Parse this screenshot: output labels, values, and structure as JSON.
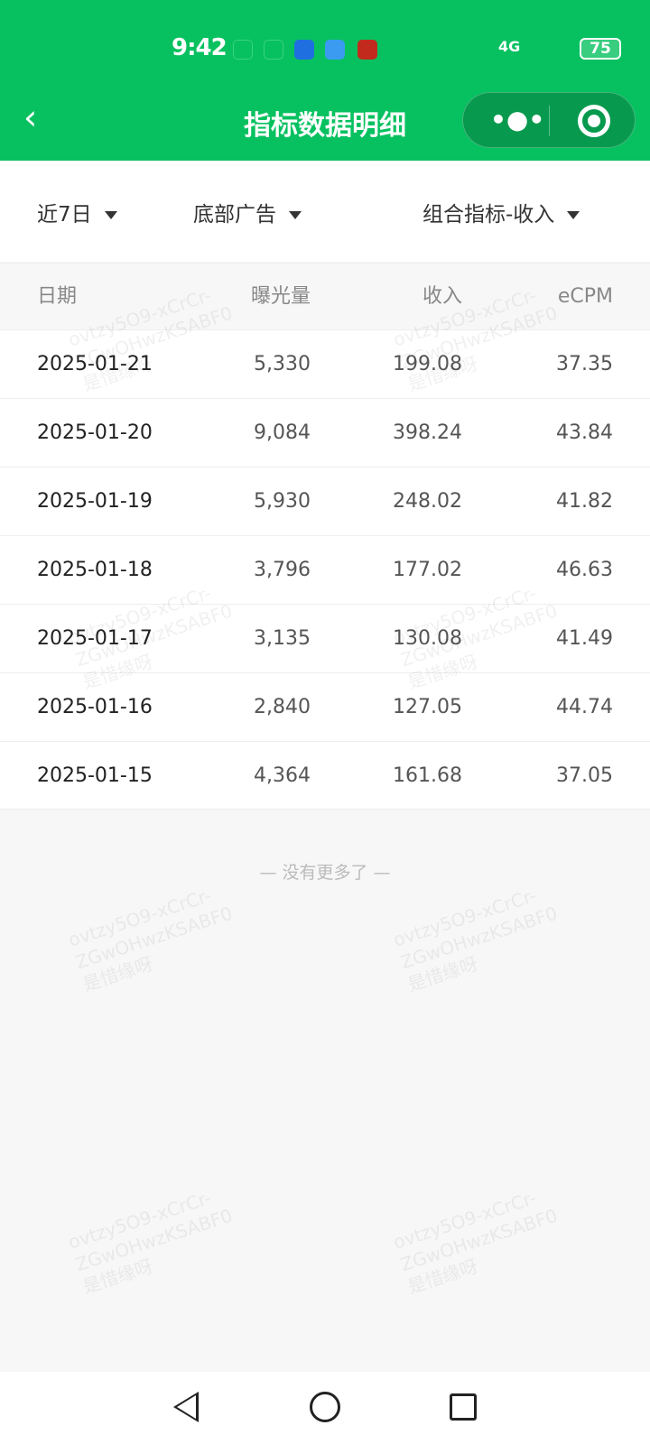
{
  "status_bar": {
    "time": "9:42",
    "network": "4G",
    "battery": "75"
  },
  "header": {
    "title": "指标数据明细",
    "back_icon": "chevron-left-icon",
    "more_icon": "more-dots-icon",
    "close_icon": "target-circle-icon",
    "color": "#07c160"
  },
  "filters": [
    {
      "label": "近7日"
    },
    {
      "label": "底部广告"
    },
    {
      "label": "组合指标-收入"
    }
  ],
  "table": {
    "headers": [
      "日期",
      "曝光量",
      "收入",
      "eCPM"
    ],
    "rows": [
      [
        "2025-01-21",
        "5,330",
        "199.08",
        "37.35"
      ],
      [
        "2025-01-20",
        "9,084",
        "398.24",
        "43.84"
      ],
      [
        "2025-01-19",
        "5,930",
        "248.02",
        "41.82"
      ],
      [
        "2025-01-18",
        "3,796",
        "177.02",
        "46.63"
      ],
      [
        "2025-01-17",
        "3,135",
        "130.08",
        "41.49"
      ],
      [
        "2025-01-16",
        "2,840",
        "127.05",
        "44.74"
      ],
      [
        "2025-01-15",
        "4,364",
        "161.68",
        "37.05"
      ]
    ]
  },
  "footer_text": "—  没有更多了  —",
  "watermark": "ovtzy5O9-xCrCr-\nZGwOHwzKSABF0\n是惜缘呀"
}
